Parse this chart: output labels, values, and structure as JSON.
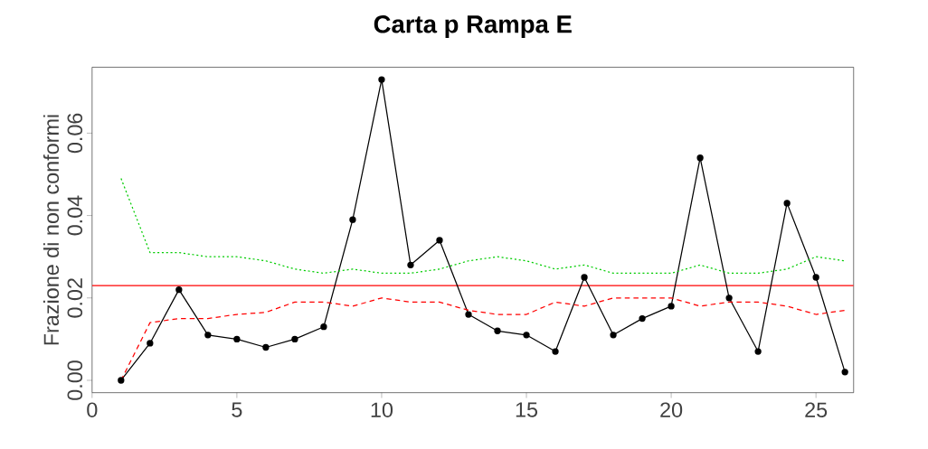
{
  "chart_data": {
    "type": "line",
    "title": "Carta p Rampa E",
    "ylabel": "Frazione di non conformi",
    "x": [
      1,
      2,
      3,
      4,
      5,
      6,
      7,
      8,
      9,
      10,
      11,
      12,
      13,
      14,
      15,
      16,
      17,
      18,
      19,
      20,
      21,
      22,
      23,
      24,
      25,
      26
    ],
    "series": [
      {
        "color": "#000000",
        "marker": "circle",
        "line_style": "solid",
        "values": [
          0.0,
          0.009,
          0.022,
          0.011,
          0.01,
          0.008,
          0.01,
          0.013,
          0.039,
          0.073,
          0.028,
          0.034,
          0.016,
          0.012,
          0.011,
          0.007,
          0.025,
          0.011,
          0.015,
          0.018,
          0.054,
          0.02,
          0.007,
          0.043,
          0.025,
          0.002
        ]
      },
      {
        "color": "#00cc00",
        "marker": "none",
        "line_style": "dotted",
        "values": [
          0.049,
          0.031,
          0.031,
          0.03,
          0.03,
          0.029,
          0.027,
          0.026,
          0.027,
          0.026,
          0.026,
          0.027,
          0.029,
          0.03,
          0.029,
          0.027,
          0.028,
          0.026,
          0.026,
          0.026,
          0.028,
          0.026,
          0.026,
          0.027,
          0.03,
          0.029
        ]
      },
      {
        "color": "#ff0000",
        "marker": "none",
        "line_style": "dashed",
        "values": [
          0.0,
          0.014,
          0.015,
          0.015,
          0.016,
          0.0165,
          0.019,
          0.019,
          0.018,
          0.02,
          0.019,
          0.019,
          0.017,
          0.016,
          0.016,
          0.019,
          0.018,
          0.02,
          0.02,
          0.02,
          0.018,
          0.019,
          0.019,
          0.018,
          0.016,
          0.017
        ]
      }
    ],
    "ref_lines": [
      {
        "axis": "y",
        "value": 0.023,
        "color": "#ff0000",
        "line_style": "solid"
      }
    ],
    "xlim": [
      0,
      26.3
    ],
    "ylim": [
      -0.003,
      0.076
    ],
    "xticks": [
      0,
      5,
      10,
      15,
      20,
      25
    ],
    "yticks": [
      {
        "value": 0,
        "label": "0.00"
      },
      {
        "value": 0.02,
        "label": "0.02"
      },
      {
        "value": 0.04,
        "label": "0.04"
      },
      {
        "value": 0.06,
        "label": "0.06"
      }
    ],
    "grid": false
  }
}
